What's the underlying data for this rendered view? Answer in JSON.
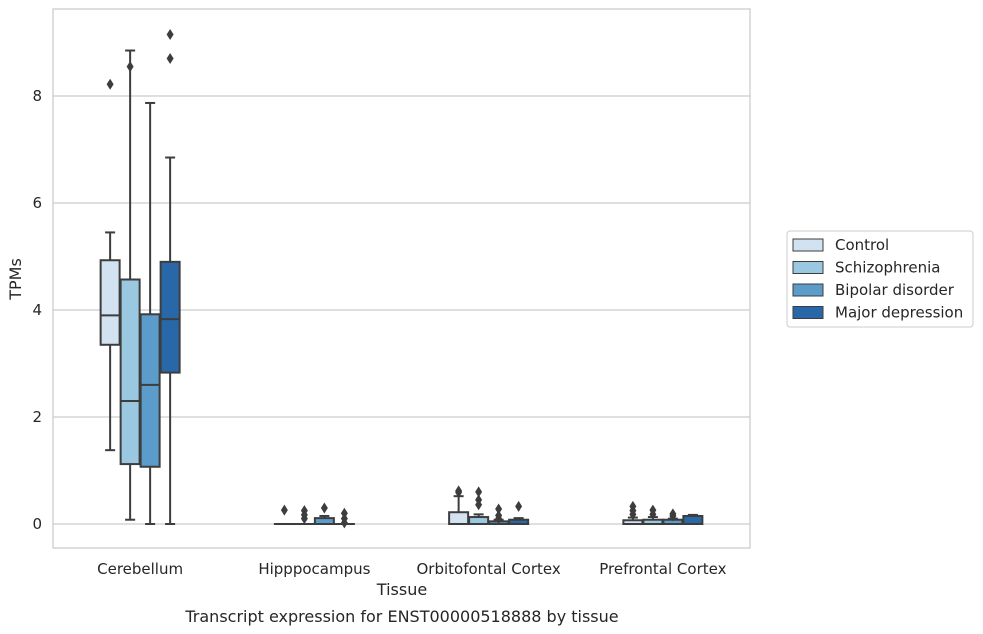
{
  "chart_data": {
    "type": "box",
    "title": "",
    "caption": "Transcript expression for ENST00000518888 by tissue",
    "xlabel": "Tissue",
    "ylabel": "TPMs",
    "ylim": [
      -0.45,
      9.6
    ],
    "yticks": [
      0,
      2,
      4,
      6,
      8
    ],
    "grid": "horizontal",
    "legend_position": "right",
    "categories": [
      "Cerebellum",
      "Hipppocampus",
      "Orbitofontal Cortex",
      "Prefrontal Cortex"
    ],
    "series": [
      {
        "name": "Control",
        "color": "#d2e2f1",
        "boxes": [
          {
            "whislo": 1.38,
            "q1": 3.35,
            "med": 3.9,
            "q3": 4.93,
            "whishi": 5.45,
            "fliers": [
              8.22
            ]
          },
          {
            "whislo": 0,
            "q1": 0,
            "med": 0,
            "q3": 0,
            "whishi": 0,
            "fliers": [
              0.26
            ]
          },
          {
            "whislo": 0,
            "q1": 0,
            "med": 0,
            "q3": 0.22,
            "whishi": 0.52,
            "fliers": [
              0.59,
              0.62
            ]
          },
          {
            "whislo": 0,
            "q1": 0,
            "med": 0,
            "q3": 0.07,
            "whishi": 0.12,
            "fliers": [
              0.18,
              0.25,
              0.33
            ]
          }
        ]
      },
      {
        "name": "Schizophrenia",
        "color": "#9ac8e0",
        "boxes": [
          {
            "whislo": 0.08,
            "q1": 1.12,
            "med": 2.3,
            "q3": 4.57,
            "whishi": 8.85,
            "fliers": [
              8.55
            ]
          },
          {
            "whislo": 0,
            "q1": 0,
            "med": 0,
            "q3": 0,
            "whishi": 0,
            "fliers": [
              0.1,
              0.17,
              0.25
            ]
          },
          {
            "whislo": 0,
            "q1": 0,
            "med": 0,
            "q3": 0.13,
            "whishi": 0.18,
            "fliers": [
              0.36,
              0.45,
              0.6
            ]
          },
          {
            "whislo": 0,
            "q1": 0,
            "med": 0,
            "q3": 0.08,
            "whishi": 0.13,
            "fliers": [
              0.18,
              0.26
            ]
          }
        ]
      },
      {
        "name": "Bipolar disorder",
        "color": "#5b9ccb",
        "boxes": [
          {
            "whislo": 0,
            "q1": 1.07,
            "med": 2.6,
            "q3": 3.92,
            "whishi": 7.87,
            "fliers": []
          },
          {
            "whislo": 0,
            "q1": 0,
            "med": 0,
            "q3": 0.11,
            "whishi": 0.15,
            "fliers": [
              0.3
            ]
          },
          {
            "whislo": 0,
            "q1": 0,
            "med": 0,
            "q3": 0.05,
            "whishi": 0.08,
            "fliers": [
              0.1,
              0.16,
              0.28
            ]
          },
          {
            "whislo": 0,
            "q1": 0,
            "med": 0,
            "q3": 0.08,
            "whishi": 0.1,
            "fliers": [
              0.15,
              0.19
            ]
          }
        ]
      },
      {
        "name": "Major depression",
        "color": "#2868a8",
        "boxes": [
          {
            "whislo": 0,
            "q1": 2.83,
            "med": 3.83,
            "q3": 4.9,
            "whishi": 6.85,
            "fliers": [
              8.7,
              9.15
            ]
          },
          {
            "whislo": 0,
            "q1": 0,
            "med": 0,
            "q3": 0,
            "whishi": 0,
            "fliers": [
              0.02,
              0.1,
              0.2
            ]
          },
          {
            "whislo": 0,
            "q1": 0,
            "med": 0,
            "q3": 0.08,
            "whishi": 0.11,
            "fliers": [
              0.33
            ]
          },
          {
            "whislo": 0,
            "q1": 0,
            "med": 0,
            "q3": 0.15,
            "whishi": 0.17,
            "fliers": []
          }
        ]
      }
    ]
  }
}
